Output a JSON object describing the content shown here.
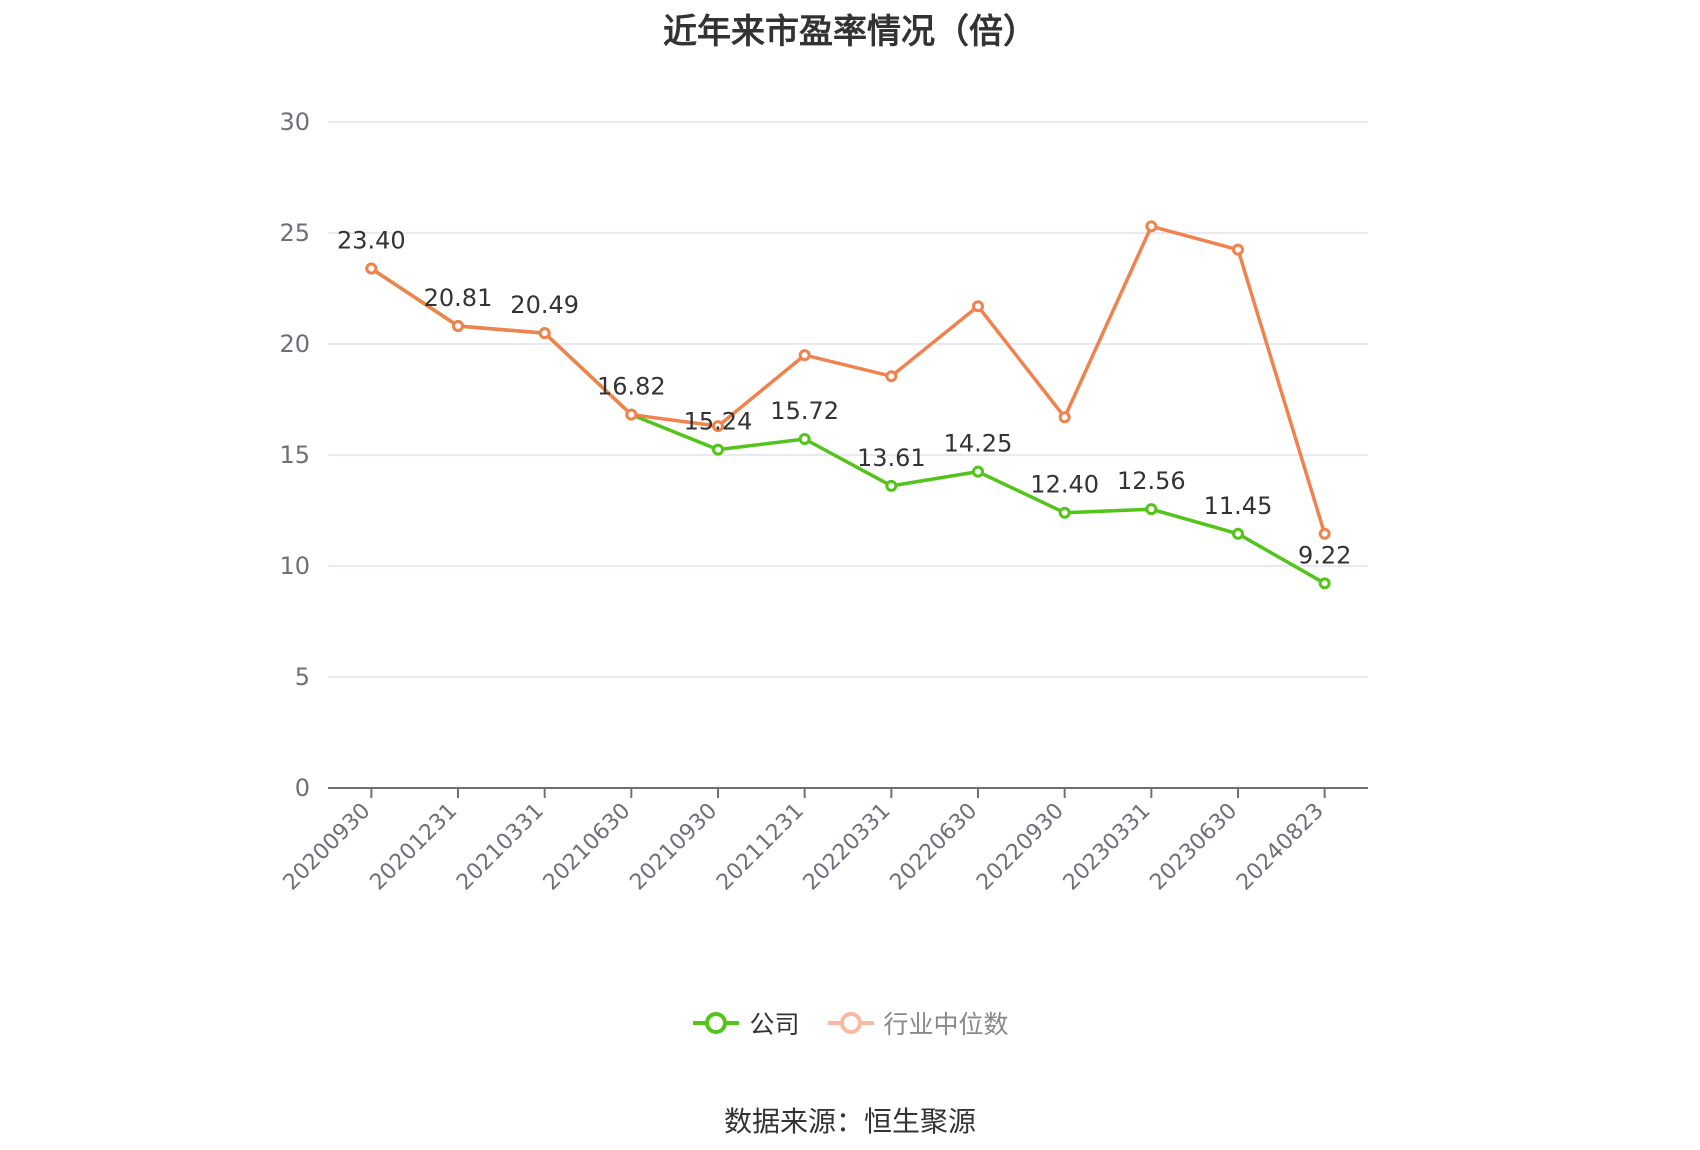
{
  "chart_data": {
    "type": "line",
    "title": "近年来市盈率情况（倍）",
    "categories": [
      "20200930",
      "20201231",
      "20210331",
      "20210630",
      "20210930",
      "20211231",
      "20220331",
      "20220630",
      "20220930",
      "20230331",
      "20230630",
      "20240823"
    ],
    "series": [
      {
        "name": "公司",
        "color": "#52c41a",
        "values": [
          23.4,
          20.81,
          20.49,
          16.82,
          15.24,
          15.72,
          13.61,
          14.25,
          12.4,
          12.56,
          11.45,
          9.22
        ],
        "labels": [
          "23.40",
          "20.81",
          "20.49",
          "16.82",
          "15.24",
          "15.72",
          "13.61",
          "14.25",
          "12.40",
          "12.56",
          "11.45",
          "9.22"
        ]
      },
      {
        "name": "行业中位数",
        "color": "#f0834d",
        "values": [
          23.4,
          20.81,
          20.49,
          16.82,
          16.3,
          19.5,
          18.55,
          21.7,
          16.7,
          25.3,
          24.25,
          11.45
        ]
      }
    ],
    "yticks": [
      0,
      5,
      10,
      15,
      20,
      25,
      30
    ],
    "ylim": [
      0,
      30
    ],
    "grid": true,
    "legend_position": "bottom"
  },
  "legend": {
    "company": {
      "label": "公司",
      "color": "#52c41a"
    },
    "industry": {
      "label": "行业中位数",
      "color": "#f0834d"
    }
  },
  "source": "数据来源：恒生聚源"
}
